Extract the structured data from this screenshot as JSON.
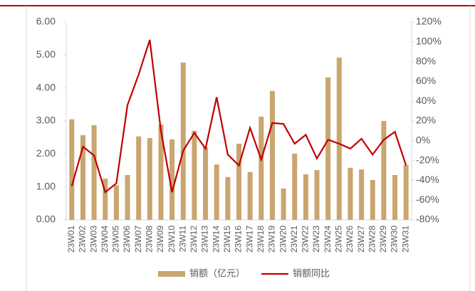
{
  "chart_data": {
    "type": "bar_line",
    "categories": [
      "23W01",
      "23W02",
      "23W03",
      "23W04",
      "23W05",
      "23W06",
      "23W07",
      "23W08",
      "23W09",
      "23W10",
      "23W11",
      "23W12",
      "23W13",
      "23W14",
      "23W15",
      "23W16",
      "23W17",
      "23W18",
      "23W19",
      "23W20",
      "23W21",
      "23W22",
      "23W23",
      "23W24",
      "23W25",
      "23W26",
      "23W27",
      "23W28",
      "23W29",
      "23W30",
      "23W31"
    ],
    "series": [
      {
        "name": "销额（亿元）",
        "color": "#c9a56f",
        "values": [
          3.05,
          2.57,
          2.87,
          1.25,
          1.05,
          1.36,
          2.53,
          2.48,
          2.89,
          2.44,
          4.77,
          2.7,
          2.2,
          1.68,
          1.3,
          2.31,
          1.45,
          3.13,
          3.91,
          0.95,
          2.01,
          1.38,
          1.51,
          4.32,
          4.92,
          1.58,
          1.53,
          1.21,
          3.0,
          1.36,
          1.66
        ]
      },
      {
        "name": "销额同比",
        "color": "#c00000",
        "axis": "y2",
        "values": [
          -46,
          -6,
          -15,
          -52,
          -43,
          36,
          67,
          102,
          10,
          -52,
          -10,
          8,
          -8,
          44,
          -14,
          -25,
          13,
          -19,
          18,
          17,
          -3,
          6,
          -18,
          1,
          -3,
          -8,
          2,
          -14,
          1,
          9,
          -25
        ]
      }
    ],
    "ylim": [
      0,
      6
    ],
    "yticks": [
      {
        "value": 0,
        "label": "0.00"
      },
      {
        "value": 1,
        "label": "1.00"
      },
      {
        "value": 2,
        "label": "2.00"
      },
      {
        "value": 3,
        "label": "3.00"
      },
      {
        "value": 4,
        "label": "4.00"
      },
      {
        "value": 5,
        "label": "5.00"
      },
      {
        "value": 6,
        "label": "6.00"
      }
    ],
    "y2lim": [
      -80,
      120
    ],
    "y2ticks": [
      {
        "value": -80,
        "label": "-80%"
      },
      {
        "value": -60,
        "label": "-60%"
      },
      {
        "value": -40,
        "label": "-40%"
      },
      {
        "value": -20,
        "label": "-20%"
      },
      {
        "value": 0,
        "label": "0%"
      },
      {
        "value": 20,
        "label": "20%"
      },
      {
        "value": 40,
        "label": "40%"
      },
      {
        "value": 60,
        "label": "60%"
      },
      {
        "value": 80,
        "label": "80%"
      },
      {
        "value": 100,
        "label": "100%"
      },
      {
        "value": 120,
        "label": "120%"
      }
    ]
  }
}
